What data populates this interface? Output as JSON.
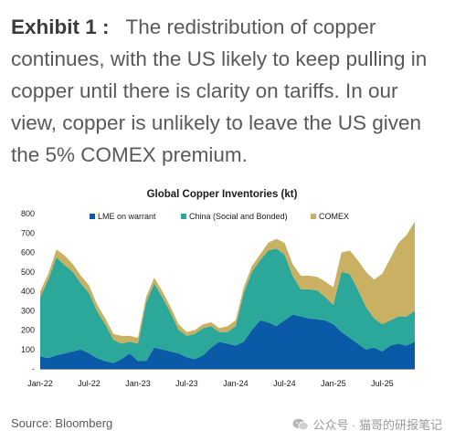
{
  "headline": {
    "exhibit": "Exhibit 1 :",
    "text": "The redistribution of copper continues, with the US likely to keep pulling in copper until there is clarity on tariffs. In our view, copper is unlikely to leave the US given the 5% COMEX premium."
  },
  "source": "Source: Bloomberg",
  "watermark": {
    "text": "公众号 · 猫哥的研报笔记",
    "icon": "wechat-logo-icon"
  },
  "chart_data": {
    "type": "area",
    "stacked": true,
    "title": "Global Copper Inventories (kt)",
    "xlabel": "",
    "ylabel": "",
    "ylim": [
      0,
      800
    ],
    "yticks": [
      0,
      100,
      200,
      300,
      400,
      500,
      600,
      700,
      800
    ],
    "xticks": [
      "Jan-22",
      "Jul-22",
      "Jan-23",
      "Jul-23",
      "Jan-24",
      "Jul-24",
      "Jan-25",
      "Jul-25"
    ],
    "legend_position": "top",
    "grid": false,
    "x": [
      "2022-01",
      "2022-02",
      "2022-03",
      "2022-04",
      "2022-05",
      "2022-06",
      "2022-07",
      "2022-08",
      "2022-09",
      "2022-10",
      "2022-11",
      "2022-12",
      "2023-01",
      "2023-02",
      "2023-03",
      "2023-04",
      "2023-05",
      "2023-06",
      "2023-07",
      "2023-08",
      "2023-09",
      "2023-10",
      "2023-11",
      "2023-12",
      "2024-01",
      "2024-02",
      "2024-03",
      "2024-04",
      "2024-05",
      "2024-06",
      "2024-07",
      "2024-08",
      "2024-09",
      "2024-10",
      "2024-11",
      "2024-12",
      "2025-01",
      "2025-02",
      "2025-03",
      "2025-04",
      "2025-05",
      "2025-06",
      "2025-07",
      "2025-08",
      "2025-09",
      "2025-10",
      "2025-11"
    ],
    "series": [
      {
        "name": "LME on warrant",
        "color": "#0a5aa8",
        "values": [
          65,
          55,
          70,
          80,
          90,
          100,
          80,
          55,
          40,
          30,
          50,
          80,
          40,
          40,
          110,
          100,
          90,
          80,
          60,
          50,
          70,
          110,
          140,
          130,
          120,
          140,
          200,
          250,
          240,
          220,
          250,
          280,
          270,
          260,
          255,
          250,
          230,
          190,
          160,
          130,
          100,
          110,
          90,
          120,
          130,
          120,
          140
        ]
      },
      {
        "name": "China (Social and Bonded)",
        "color": "#2ca89a",
        "values": [
          305,
          405,
          505,
          455,
          410,
          340,
          310,
          240,
          190,
          120,
          80,
          60,
          90,
          300,
          330,
          270,
          200,
          120,
          110,
          130,
          140,
          110,
          50,
          60,
          100,
          250,
          300,
          310,
          370,
          400,
          340,
          200,
          140,
          150,
          150,
          120,
          100,
          310,
          330,
          280,
          220,
          150,
          140,
          130,
          140,
          150,
          160
        ]
      },
      {
        "name": "COMEX",
        "color": "#c9b062",
        "values": [
          30,
          30,
          40,
          50,
          40,
          40,
          40,
          35,
          30,
          30,
          40,
          30,
          30,
          30,
          30,
          30,
          30,
          30,
          20,
          20,
          20,
          20,
          20,
          30,
          30,
          30,
          30,
          30,
          40,
          50,
          60,
          60,
          70,
          70,
          70,
          80,
          90,
          100,
          120,
          150,
          180,
          200,
          260,
          320,
          380,
          420,
          460
        ]
      }
    ]
  }
}
